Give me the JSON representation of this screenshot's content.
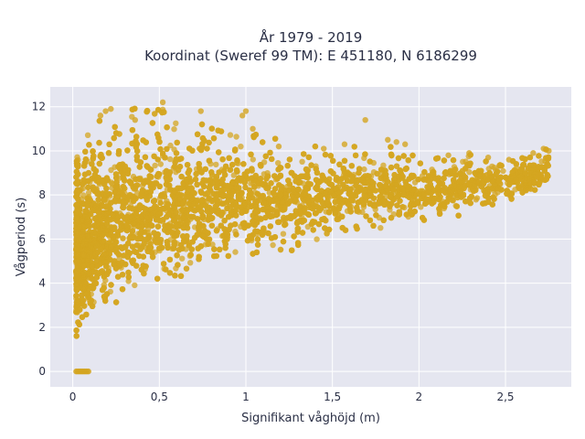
{
  "chart_data": {
    "type": "scatter",
    "title_line1": "År 1979 - 2019",
    "title_line2": "Koordinat (Sweref 99 TM): E 451180, N 6186299",
    "xlabel": "Signifikant våghöjd (m)",
    "ylabel": "Vågperiod (s)",
    "xlim": [
      -0.13,
      2.88
    ],
    "ylim": [
      -0.7,
      12.9
    ],
    "xticks": [
      0,
      0.5,
      1,
      1.5,
      2,
      2.5
    ],
    "xtick_labels": [
      "0",
      "0,5",
      "1",
      "1,5",
      "2",
      "2,5"
    ],
    "yticks": [
      0,
      2,
      4,
      6,
      8,
      10,
      12
    ],
    "ytick_labels": [
      "0",
      "2",
      "4",
      "6",
      "8",
      "10",
      "12"
    ],
    "grid": true,
    "marker_color": "#D4A520",
    "plot_background": "#E5E6F0",
    "envelope": [
      {
        "x": 0.02,
        "y_min": 1.2,
        "y_max": 9.9
      },
      {
        "x": 0.1,
        "y_min": 1.3,
        "y_max": 11.0
      },
      {
        "x": 0.25,
        "y_min": 2.3,
        "y_max": 12.0
      },
      {
        "x": 0.5,
        "y_min": 3.2,
        "y_max": 12.2
      },
      {
        "x": 0.75,
        "y_min": 4.0,
        "y_max": 11.2
      },
      {
        "x": 1.0,
        "y_min": 4.6,
        "y_max": 11.1
      },
      {
        "x": 1.25,
        "y_min": 5.1,
        "y_max": 10.5
      },
      {
        "x": 1.5,
        "y_min": 5.6,
        "y_max": 10.3
      },
      {
        "x": 1.75,
        "y_min": 6.0,
        "y_max": 10.5
      },
      {
        "x": 2.0,
        "y_min": 6.4,
        "y_max": 9.8
      },
      {
        "x": 2.25,
        "y_min": 6.9,
        "y_max": 9.9
      },
      {
        "x": 2.5,
        "y_min": 7.4,
        "y_max": 9.6
      },
      {
        "x": 2.75,
        "y_min": 8.3,
        "y_max": 10.1
      }
    ],
    "calm_points": [
      {
        "x": 0.02,
        "y": 0
      },
      {
        "x": 0.03,
        "y": 0
      },
      {
        "x": 0.04,
        "y": 0
      },
      {
        "x": 0.05,
        "y": 0
      },
      {
        "x": 0.06,
        "y": 0
      },
      {
        "x": 0.07,
        "y": 0
      },
      {
        "x": 0.08,
        "y": 0
      },
      {
        "x": 0.09,
        "y": 0
      }
    ],
    "outliers": [
      {
        "x": 0.16,
        "y": 11.6
      },
      {
        "x": 0.19,
        "y": 11.8
      },
      {
        "x": 0.22,
        "y": 11.9
      },
      {
        "x": 0.36,
        "y": 11.4
      },
      {
        "x": 0.52,
        "y": 12.2
      },
      {
        "x": 0.74,
        "y": 11.8
      },
      {
        "x": 0.98,
        "y": 11.6
      },
      {
        "x": 1.0,
        "y": 11.8
      },
      {
        "x": 1.04,
        "y": 11.0
      },
      {
        "x": 1.19,
        "y": 10.2
      },
      {
        "x": 1.45,
        "y": 10.1
      },
      {
        "x": 1.57,
        "y": 10.3
      },
      {
        "x": 1.69,
        "y": 11.4
      },
      {
        "x": 1.82,
        "y": 10.5
      },
      {
        "x": 1.87,
        "y": 10.4
      },
      {
        "x": 1.92,
        "y": 10.3
      },
      {
        "x": 2.17,
        "y": 9.8
      },
      {
        "x": 2.29,
        "y": 9.9
      },
      {
        "x": 2.4,
        "y": 9.7
      },
      {
        "x": 2.52,
        "y": 9.6
      },
      {
        "x": 2.66,
        "y": 9.9
      },
      {
        "x": 2.72,
        "y": 10.1
      },
      {
        "x": 2.75,
        "y": 10.0
      },
      {
        "x": 2.69,
        "y": 8.9
      },
      {
        "x": 2.71,
        "y": 8.8
      }
    ]
  }
}
